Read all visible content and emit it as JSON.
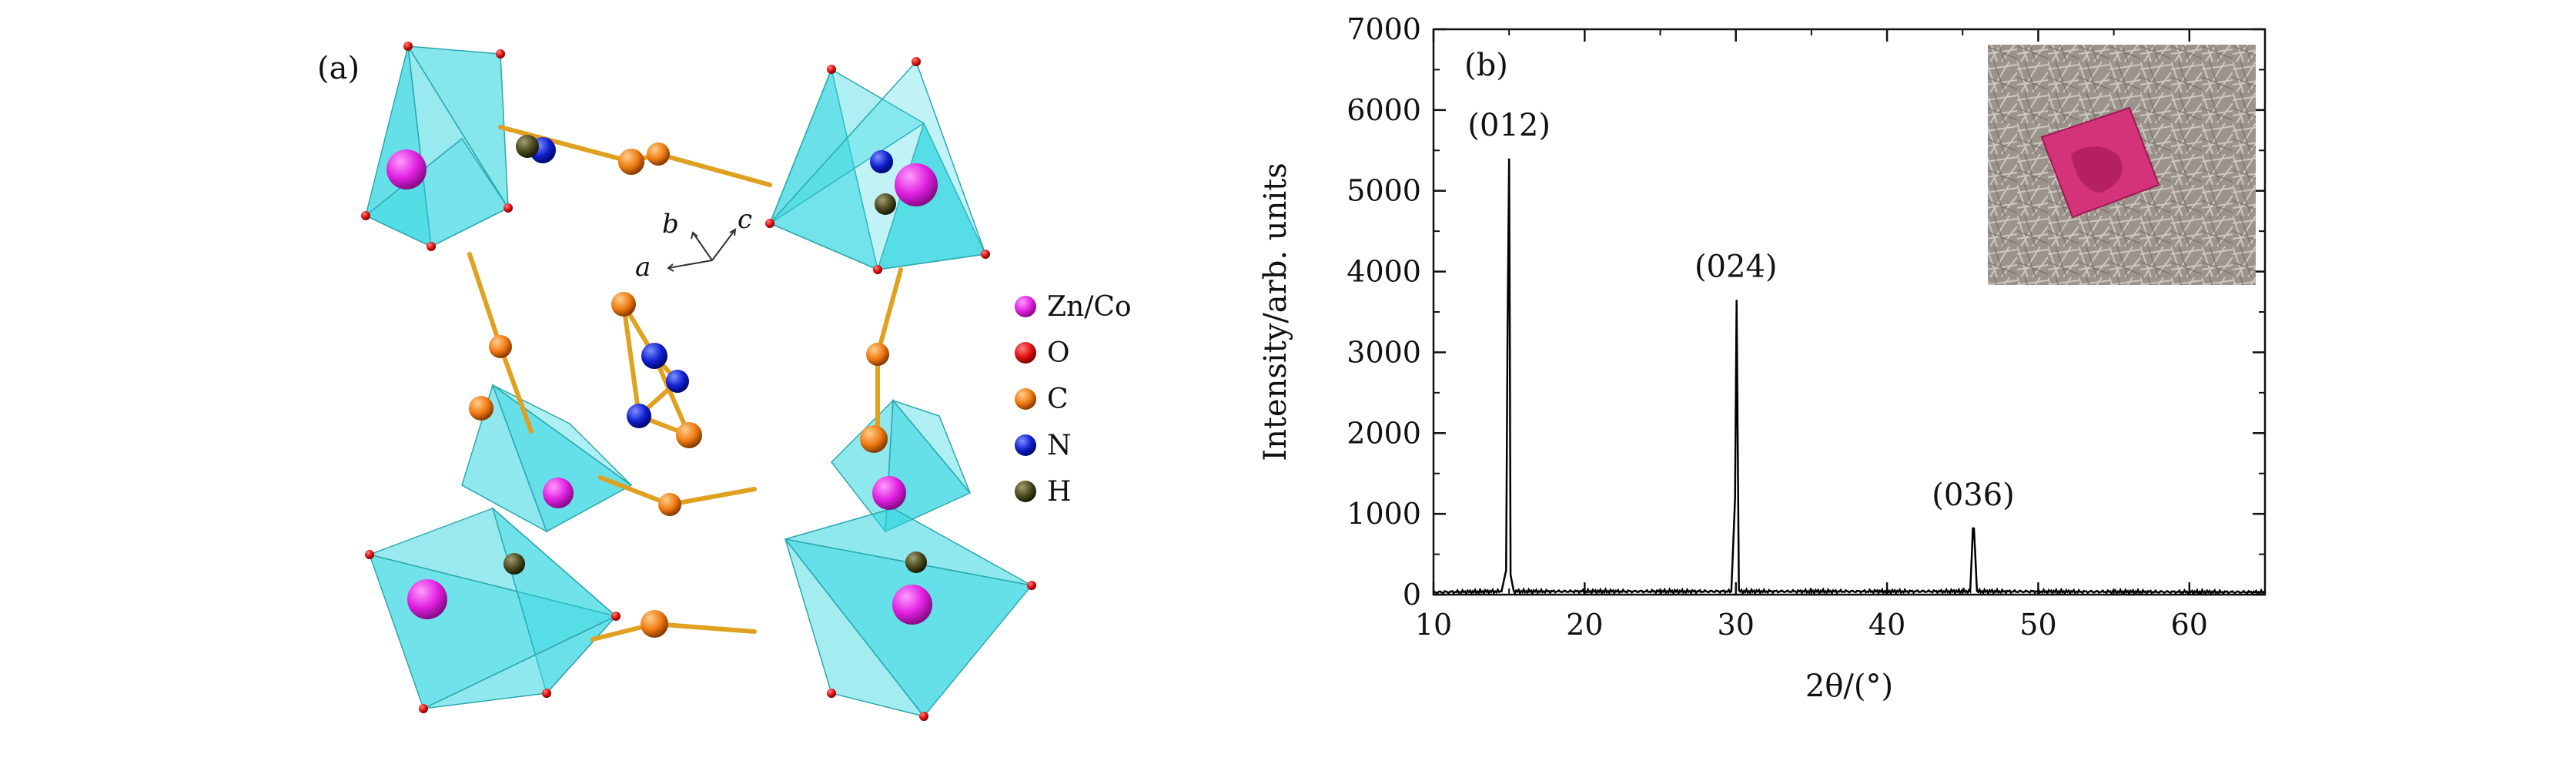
{
  "panel_a": {
    "label": "(a)",
    "axes": {
      "a": "a",
      "b": "b",
      "c": "c"
    },
    "legend": [
      {
        "label": "Zn/Co",
        "color": "#e020e0"
      },
      {
        "label": "O",
        "color": "#e01010"
      },
      {
        "label": "C",
        "color": "#f07a10"
      },
      {
        "label": "N",
        "color": "#1020d0"
      },
      {
        "label": "H",
        "color": "#3a3a18"
      }
    ],
    "polyhedron_color": "#33d6e0",
    "bond_color": "#e0a020"
  },
  "chart_data": {
    "type": "line",
    "panel_label": "(b)",
    "title": "",
    "xlabel": "2θ/(°)",
    "ylabel": "Intensity/arb. units",
    "xlim": [
      10,
      65
    ],
    "ylim": [
      0,
      7000
    ],
    "xticks": [
      10,
      20,
      30,
      40,
      50,
      60
    ],
    "yticks": [
      0,
      1000,
      2000,
      3000,
      4000,
      5000,
      6000,
      7000
    ],
    "grid": false,
    "series": [
      {
        "name": "XRD pattern",
        "color": "#000000",
        "x": [
          10,
          14.5,
          14.8,
          14.9,
          15.0,
          15.05,
          15.1,
          15.3,
          29.7,
          29.95,
          30.05,
          30.2,
          45.5,
          45.68,
          45.75,
          45.95,
          65
        ],
        "y": [
          30,
          40,
          300,
          3300,
          5400,
          3000,
          250,
          40,
          40,
          1200,
          3650,
          40,
          40,
          820,
          820,
          40,
          30
        ]
      }
    ],
    "peak_labels": [
      {
        "label": "(012)",
        "x": 15.0,
        "y": 5400
      },
      {
        "label": "(024)",
        "x": 30.0,
        "y": 3650
      },
      {
        "label": "(036)",
        "x": 45.7,
        "y": 820
      }
    ],
    "inset": "photo of pink crystal on paper"
  }
}
